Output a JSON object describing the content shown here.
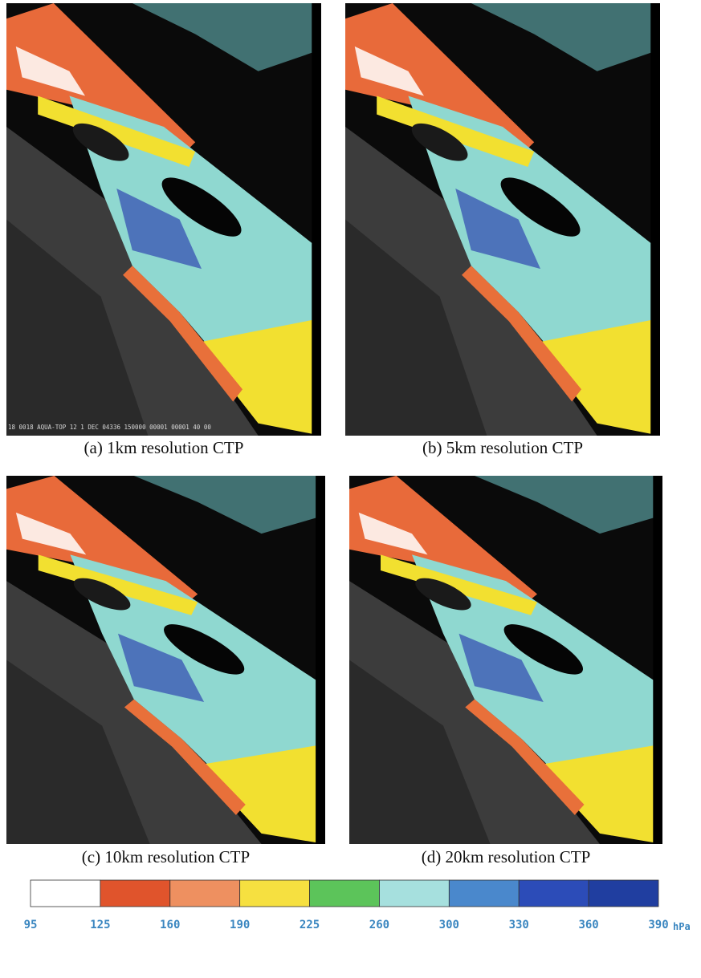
{
  "panels": [
    {
      "caption": "(a) 1km resolution CTP"
    },
    {
      "caption": "(b) 5km resolution CTP"
    },
    {
      "caption": "(c) 10km resolution CTP"
    },
    {
      "caption": "(d) 20km resolution CTP"
    }
  ],
  "image_stamp": "18 0018 AQUA-TOP 12 1 DEC 04336 150000 00001 00001 40 00",
  "colorbar": {
    "ticks": [
      95,
      125,
      160,
      190,
      225,
      260,
      300,
      330,
      360,
      390
    ],
    "colors": [
      "#ffffff",
      "#e0542c",
      "#ee9060",
      "#f6e040",
      "#5cc45a",
      "#a6e0de",
      "#4a88cc",
      "#2c4cb8",
      "#203ea0"
    ],
    "unit": "hPa"
  }
}
